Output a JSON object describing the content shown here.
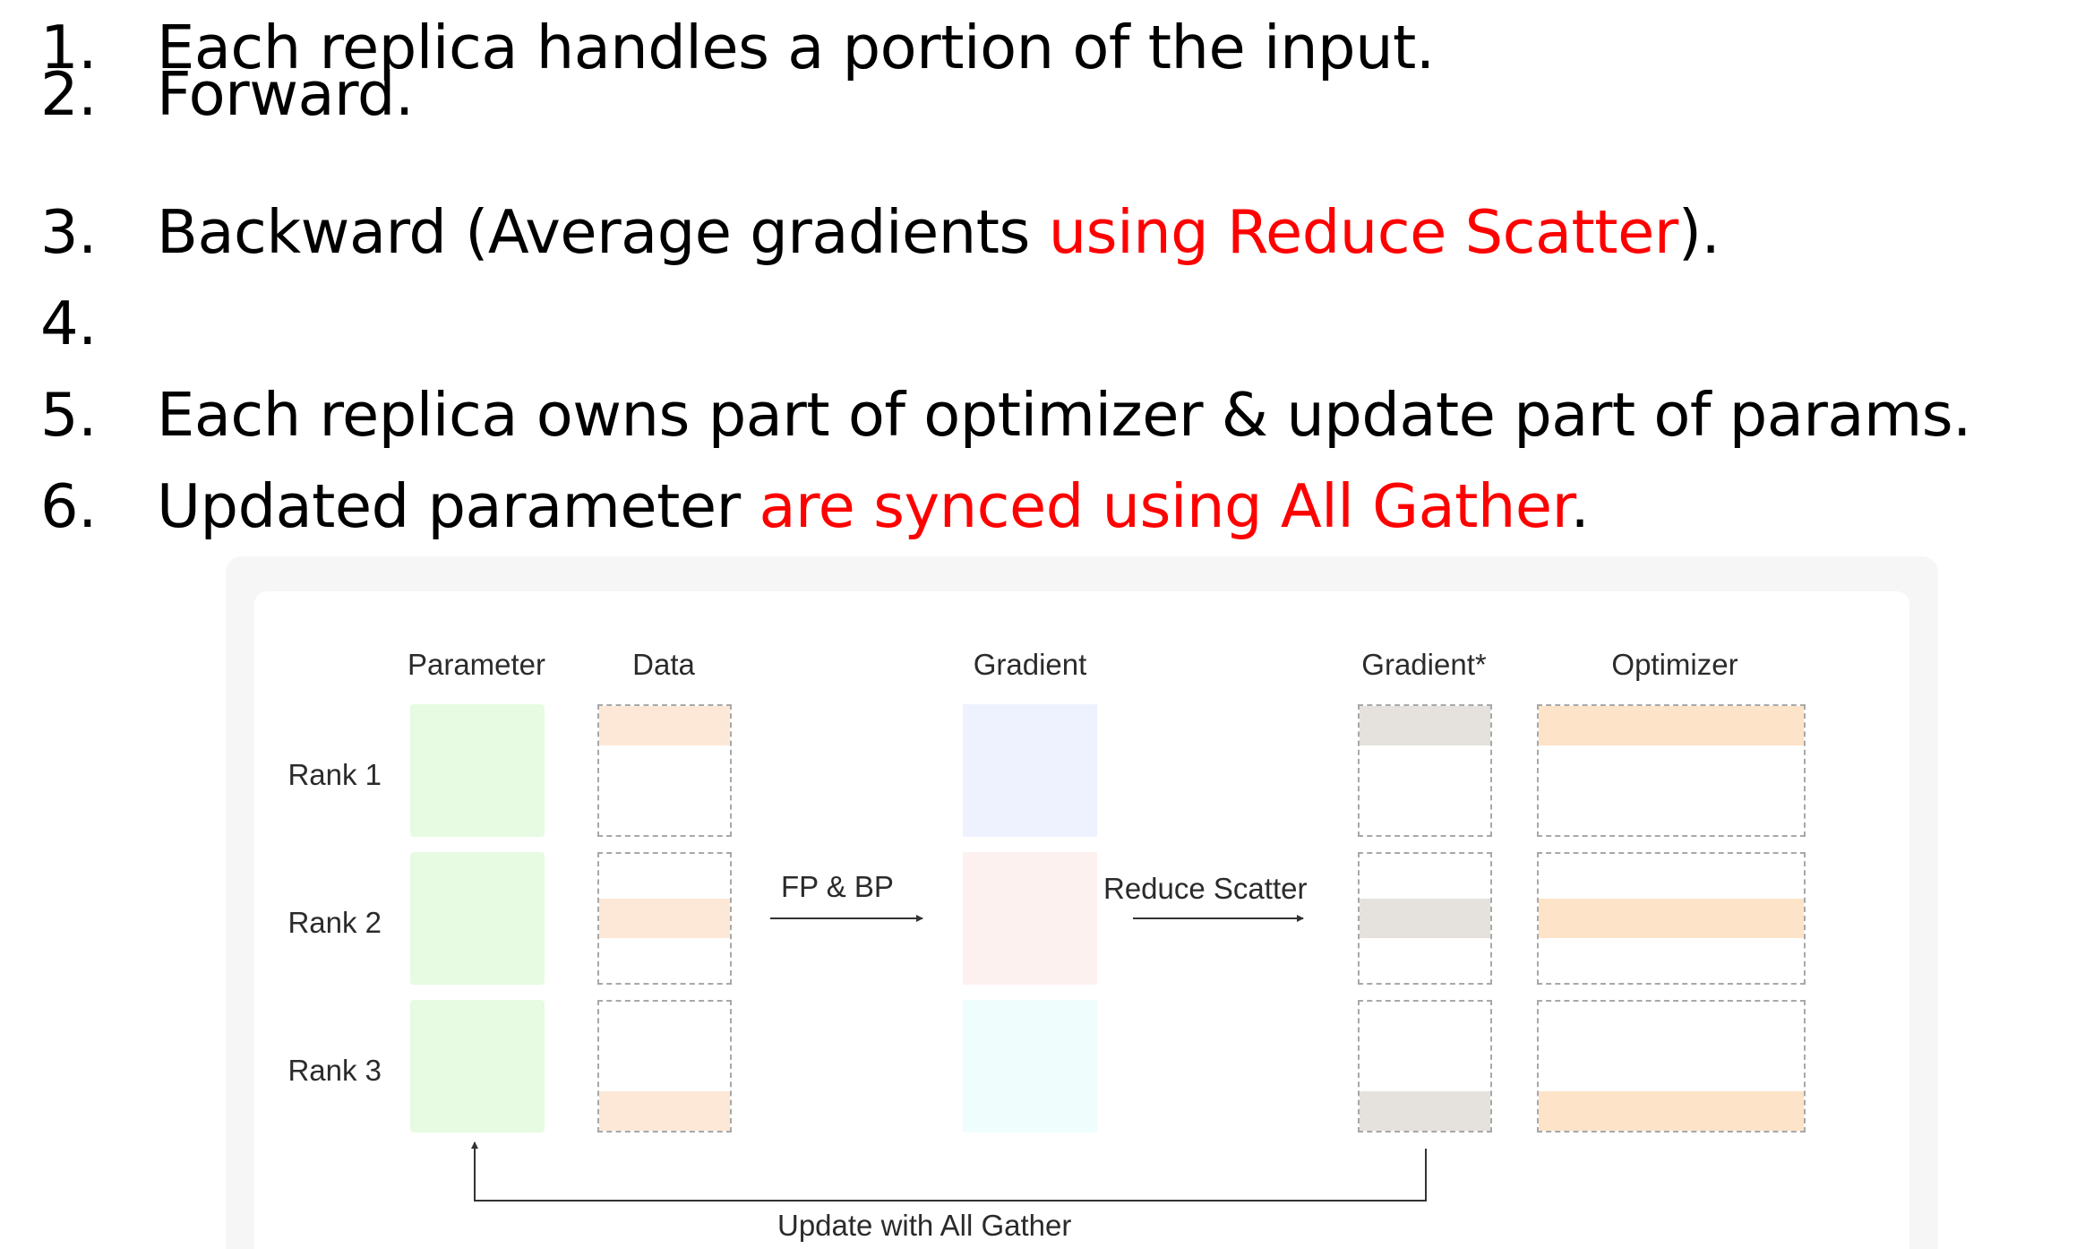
{
  "steps": [
    {
      "number": "1.",
      "parts": [
        {
          "text": "Each replica handles a portion of the input.",
          "highlight": false
        }
      ]
    },
    {
      "number": "2.",
      "parts": [
        {
          "text": "Forward.",
          "highlight": false
        }
      ]
    },
    {
      "number": "3.",
      "parts": [
        {
          "text": "Backward (Average gradients ",
          "highlight": false
        },
        {
          "text": "using Reduce Scatter",
          "highlight": true
        },
        {
          "text": ").",
          "highlight": false
        }
      ]
    },
    {
      "number": "4.",
      "parts": []
    },
    {
      "number": "5.",
      "parts": [
        {
          "text": "Each replica owns part of optimizer & update part of params.",
          "highlight": false
        }
      ]
    },
    {
      "number": "6.",
      "parts": [
        {
          "text": "Updated parameter ",
          "highlight": false
        },
        {
          "text": "are synced using All Gather",
          "highlight": true
        },
        {
          "text": ".",
          "highlight": false
        }
      ]
    }
  ],
  "diagram": {
    "columns": {
      "parameter": "Parameter",
      "data": "Data",
      "gradient": "Gradient",
      "gradient_star": "Gradient*",
      "optimizer": "Optimizer"
    },
    "rows": [
      "Rank 1",
      "Rank 2",
      "Rank 3"
    ],
    "arrows": {
      "fp_bp": "FP & BP",
      "reduce_scatter": "Reduce Scatter",
      "all_gather": "Update with All Gather"
    }
  },
  "colors": {
    "highlight": "#ff0000",
    "parameter": "#e6fbe2",
    "data_strip": "#fde8d7",
    "gradient_rank1": "#eef1fe",
    "gradient_rank2": "#fdf1f0",
    "gradient_rank3": "#effdfd",
    "gradient_star_strip": "#e5e1dd",
    "optimizer_strip": "#fde3c8"
  }
}
